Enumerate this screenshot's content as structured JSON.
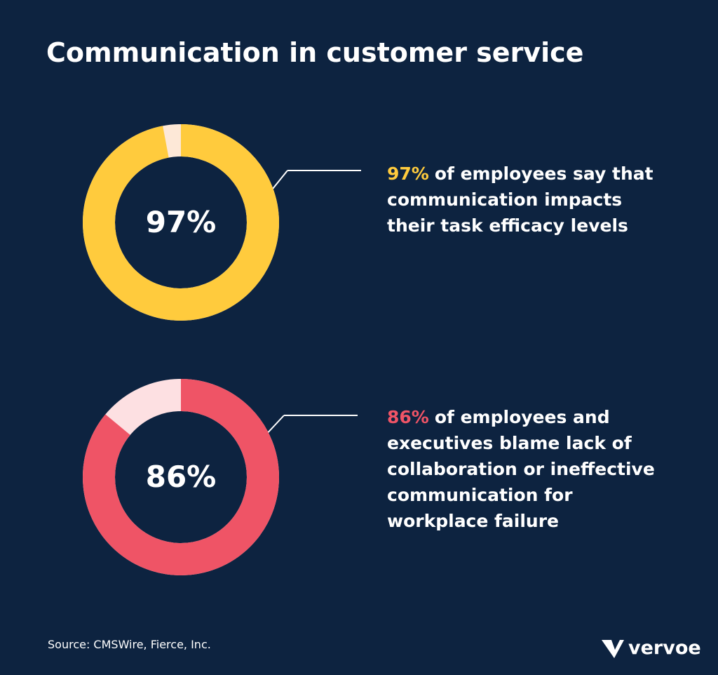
{
  "title": "Communication in customer service",
  "chart_data": [
    {
      "type": "donut",
      "total": 100,
      "values": [
        97
      ],
      "value_labels": [
        "97%"
      ],
      "color": "#ffcb3d",
      "track_color": "#fde8d7",
      "text_lines": [
        "of employees say that",
        "communication impacts",
        "their task efficacy levels"
      ]
    },
    {
      "type": "donut",
      "total": 100,
      "values": [
        86
      ],
      "value_labels": [
        "86%"
      ],
      "color": "#ef5466",
      "track_color": "#fde0e2",
      "text_lines": [
        "of employees and",
        "executives blame lack of",
        "collaboration or ineffective",
        "communication for",
        "workplace failure"
      ]
    }
  ],
  "source": "Source: CMSWire, Fierce, Inc.",
  "brand": "vervoe"
}
